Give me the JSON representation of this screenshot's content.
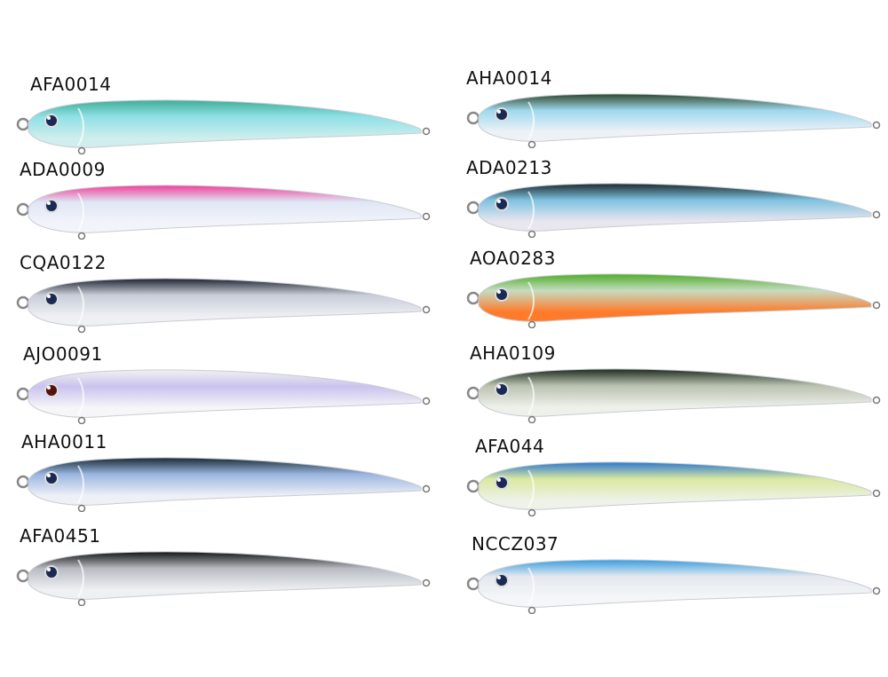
{
  "lures": [
    {
      "code": "AFA0014",
      "back": "#3fae95",
      "mid": "#8fe0e6",
      "belly": "#cfeeed",
      "eye": "#1b2a55"
    },
    {
      "code": "ADA0009",
      "back": "#f0409a",
      "mid": "#dfe6f5",
      "belly": "#f2f4fa",
      "eye": "#1b2a55"
    },
    {
      "code": "CQA0122",
      "back": "#1f2430",
      "mid": "#c9cdd8",
      "belly": "#eef0f4",
      "eye": "#1b2a55"
    },
    {
      "code": "AJO0091",
      "back": "#f1f1f1",
      "mid": "#c9c3ee",
      "belly": "#f6f6f8",
      "eye": "#5a0f0f"
    },
    {
      "code": "AHA0011",
      "back": "#1a2a35",
      "mid": "#9ab6e0",
      "belly": "#eef0f6",
      "eye": "#1b2a55"
    },
    {
      "code": "AFA0451",
      "back": "#151515",
      "mid": "#b8bcc2",
      "belly": "#eef0f2",
      "eye": "#1b2a55"
    },
    {
      "code": "AHA0014",
      "back": "#2e4a2e",
      "mid": "#9fd8ee",
      "belly": "#eef2f6",
      "eye": "#1b2a55"
    },
    {
      "code": "ADA0213",
      "back": "#1c2c30",
      "mid": "#7fc2e0",
      "belly": "#eae6ee",
      "eye": "#1b2a55"
    },
    {
      "code": "AOA0283",
      "back": "#4fae2a",
      "mid": "#c6dcc0",
      "belly": "#ff7a2a",
      "eye": "#1b2a55"
    },
    {
      "code": "AHA0109",
      "back": "#1e2a1e",
      "mid": "#b9c2b0",
      "belly": "#eef0ea",
      "eye": "#1b2a55"
    },
    {
      "code": "AFA044",
      "back": "#2d78d0",
      "mid": "#d8e8a0",
      "belly": "#eef2e8",
      "eye": "#1b2a55"
    },
    {
      "code": "NCCZ037",
      "back": "#3a9ee0",
      "mid": "#e4e8ee",
      "belly": "#f4f6f8",
      "eye": "#1b2a55"
    }
  ]
}
